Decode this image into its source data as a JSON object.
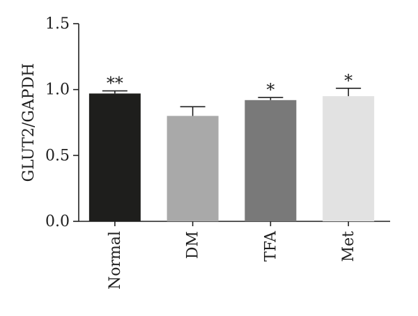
{
  "chart_data": {
    "type": "bar",
    "title": "",
    "xlabel": "",
    "ylabel": "GLUT2/GAPDH",
    "ylim": [
      0.0,
      1.5
    ],
    "yticks": [
      "0.0",
      "0.5",
      "1.0",
      "1.5"
    ],
    "categories": [
      "Normal",
      "DM",
      "TFA",
      "Met"
    ],
    "values": [
      0.97,
      0.8,
      0.92,
      0.95
    ],
    "errors": [
      0.02,
      0.07,
      0.02,
      0.06
    ],
    "significance": [
      "**",
      "",
      "*",
      "*"
    ],
    "colors": [
      "#1e1e1c",
      "#a9a9a9",
      "#797979",
      "#e2e2e2"
    ],
    "grid": false,
    "legend": "none"
  }
}
